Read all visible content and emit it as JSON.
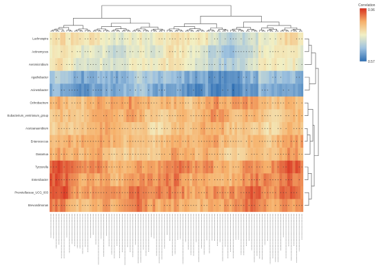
{
  "chart_data": {
    "type": "heatmap",
    "title": "",
    "xlabel": "",
    "ylabel": "",
    "legend": {
      "title": "Correlation",
      "max_label": "0.96",
      "min_label": "0.57",
      "placement": "top-right"
    },
    "rows": [
      "Lachnospira",
      "Actinomyces",
      "Aeromicrobium",
      "Agathobacter",
      "Acinetobacter",
      "Ochrobactrum",
      "Eubacterium_ventriosum_group",
      "Acetoanaerobium",
      "Enterococcus",
      "Dasamua",
      "Tyzzerella",
      "Enterobacter",
      "Prevotellaceae_UCG_003",
      "Brevundimonas"
    ],
    "column_count": 96,
    "colorscale": [
      "#2f6fb3",
      "#9ec2df",
      "#f2f0c4",
      "#f6b06a",
      "#d7301f"
    ],
    "row_profiles": [
      {
        "base": 0.52,
        "amp": 0.1,
        "significance": "moderate"
      },
      {
        "base": 0.46,
        "amp": 0.12,
        "significance": "moderate"
      },
      {
        "base": 0.48,
        "amp": 0.11,
        "significance": "moderate"
      },
      {
        "base": 0.24,
        "amp": 0.12,
        "significance": "low"
      },
      {
        "base": 0.18,
        "amp": 0.12,
        "significance": "low"
      },
      {
        "base": 0.74,
        "amp": 0.1,
        "significance": "high"
      },
      {
        "base": 0.71,
        "amp": 0.11,
        "significance": "high"
      },
      {
        "base": 0.68,
        "amp": 0.12,
        "significance": "high"
      },
      {
        "base": 0.72,
        "amp": 0.1,
        "significance": "high"
      },
      {
        "base": 0.7,
        "amp": 0.11,
        "significance": "high"
      },
      {
        "base": 0.8,
        "amp": 0.1,
        "significance": "high"
      },
      {
        "base": 0.78,
        "amp": 0.1,
        "significance": "high"
      },
      {
        "base": 0.82,
        "amp": 0.1,
        "significance": "high"
      },
      {
        "base": 0.77,
        "amp": 0.11,
        "significance": "high"
      }
    ]
  }
}
